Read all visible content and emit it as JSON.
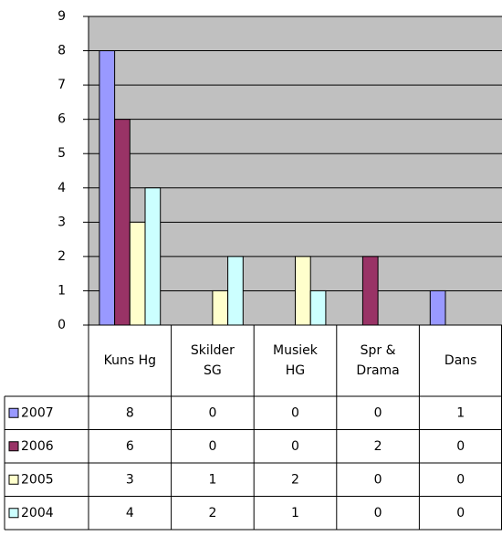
{
  "chart_data": {
    "type": "bar",
    "categories": [
      "Kuns Hg",
      "Skilder SG",
      "Musiek HG",
      "Spr & Drama",
      "Dans"
    ],
    "series": [
      {
        "name": "2007",
        "color": "#9999ff",
        "values": [
          8,
          0,
          0,
          0,
          1
        ]
      },
      {
        "name": "2006",
        "color": "#993366",
        "values": [
          6,
          0,
          0,
          2,
          0
        ]
      },
      {
        "name": "2005",
        "color": "#ffffcc",
        "values": [
          3,
          1,
          2,
          0,
          0
        ]
      },
      {
        "name": "2004",
        "color": "#ccffff",
        "values": [
          4,
          2,
          1,
          0,
          0
        ]
      }
    ],
    "ylim": [
      0,
      9
    ],
    "yticks": [
      0,
      1,
      2,
      3,
      4,
      5,
      6,
      7,
      8,
      9
    ],
    "grid": true
  }
}
